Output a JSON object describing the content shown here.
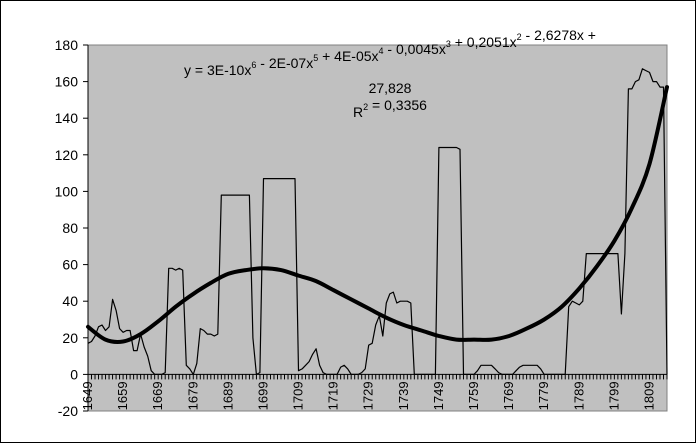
{
  "chart_data": {
    "type": "line",
    "title": "",
    "xlabel": "",
    "ylabel": "",
    "ylim": [
      -20,
      180
    ],
    "xlim": [
      1649,
      1814
    ],
    "grid": false,
    "legend": "none",
    "plot_background": "#c0c0c0",
    "y_ticks": [
      "-20",
      "0",
      "20",
      "40",
      "60",
      "80",
      "100",
      "120",
      "140",
      "160",
      "180"
    ],
    "x_ticks": [
      "1649",
      "1659",
      "1669",
      "1679",
      "1689",
      "1699",
      "1709",
      "1719",
      "1729",
      "1739",
      "1749",
      "1759",
      "1769",
      "1779",
      "1789",
      "1799",
      "1809"
    ],
    "trendline": {
      "equation_line1": "y = 3E-10x6 - 2E-07x5 + 4E-05x4 - 0,0045x3 + 0,2051x2 - 2,6278x +",
      "equation_line2": "27,828",
      "r_squared": "R2 = 0,3356",
      "x": [
        1649,
        1654,
        1659,
        1664,
        1669,
        1674,
        1679,
        1684,
        1689,
        1694,
        1699,
        1704,
        1709,
        1714,
        1719,
        1724,
        1729,
        1734,
        1739,
        1744,
        1749,
        1754,
        1759,
        1764,
        1769,
        1774,
        1779,
        1784,
        1789,
        1794,
        1799,
        1804,
        1809,
        1814
      ],
      "y": [
        26,
        19,
        18,
        22,
        29,
        37,
        44,
        50,
        55,
        57,
        58,
        57,
        54,
        51,
        46,
        41,
        36,
        31,
        27,
        24,
        21,
        19,
        19,
        19,
        21,
        25,
        30,
        37,
        47,
        59,
        73,
        91,
        115,
        157
      ]
    },
    "series": [
      {
        "x": [
          1649,
          1650,
          1651,
          1652,
          1653,
          1654,
          1655,
          1656,
          1657,
          1658,
          1659,
          1660,
          1661,
          1662,
          1663,
          1664,
          1665,
          1666,
          1667,
          1668,
          1669,
          1670,
          1671,
          1672,
          1673,
          1674,
          1675,
          1676,
          1677,
          1678,
          1679,
          1680,
          1681,
          1682,
          1683,
          1684,
          1685,
          1686,
          1687,
          1688,
          1689,
          1690,
          1691,
          1692,
          1693,
          1694,
          1695,
          1696,
          1697,
          1698,
          1699,
          1700,
          1701,
          1702,
          1703,
          1704,
          1705,
          1706,
          1707,
          1708,
          1709,
          1710,
          1711,
          1712,
          1713,
          1714,
          1715,
          1716,
          1717,
          1718,
          1719,
          1720,
          1721,
          1722,
          1723,
          1724,
          1725,
          1726,
          1727,
          1728,
          1729,
          1730,
          1731,
          1732,
          1733,
          1734,
          1735,
          1736,
          1737,
          1738,
          1739,
          1740,
          1741,
          1742,
          1743,
          1744,
          1745,
          1746,
          1747,
          1748,
          1749,
          1750,
          1751,
          1752,
          1753,
          1754,
          1755,
          1756,
          1757,
          1758,
          1759,
          1760,
          1761,
          1762,
          1763,
          1764,
          1765,
          1766,
          1767,
          1768,
          1769,
          1770,
          1771,
          1772,
          1773,
          1774,
          1775,
          1776,
          1777,
          1778,
          1779,
          1780,
          1781,
          1782,
          1783,
          1784,
          1785,
          1786,
          1787,
          1788,
          1789,
          1790,
          1791,
          1792,
          1793,
          1794,
          1795,
          1796,
          1797,
          1798,
          1799,
          1800,
          1801,
          1802,
          1803,
          1804,
          1805,
          1806,
          1807,
          1808,
          1809,
          1810,
          1811,
          1812,
          1813,
          1814
        ],
        "values": [
          17,
          18,
          21,
          26,
          27,
          24,
          26,
          41,
          35,
          25,
          23,
          24,
          24,
          13,
          13,
          22,
          15,
          10,
          2,
          0,
          0,
          0,
          1,
          58,
          58,
          57,
          58,
          57,
          5,
          3,
          0,
          6,
          25,
          24,
          22,
          22,
          21,
          22,
          98,
          98,
          98,
          98,
          98,
          98,
          98,
          98,
          98,
          20,
          0,
          1,
          107,
          107,
          107,
          107,
          107,
          107,
          107,
          107,
          107,
          107,
          2,
          3,
          5,
          7,
          11,
          14,
          5,
          1,
          0,
          0,
          0,
          0,
          4,
          5,
          3,
          0,
          0,
          0,
          1,
          3,
          16,
          17,
          27,
          32,
          21,
          39,
          44,
          45,
          39,
          40,
          40,
          40,
          39,
          0,
          0,
          0,
          0,
          0,
          0,
          0,
          124,
          124,
          124,
          124,
          124,
          124,
          123,
          0,
          0,
          0,
          0,
          2,
          5,
          5,
          5,
          5,
          3,
          1,
          0,
          0,
          0,
          0,
          2,
          4,
          5,
          5,
          5,
          5,
          5,
          3,
          0,
          0,
          0,
          0,
          0,
          0,
          0,
          37,
          40,
          39,
          38,
          40,
          66,
          66,
          66,
          66,
          66,
          66,
          66,
          66,
          66,
          66,
          33,
          66,
          156,
          156,
          160,
          161,
          167,
          166,
          165,
          160,
          160,
          157,
          157,
          0
        ]
      }
    ]
  }
}
